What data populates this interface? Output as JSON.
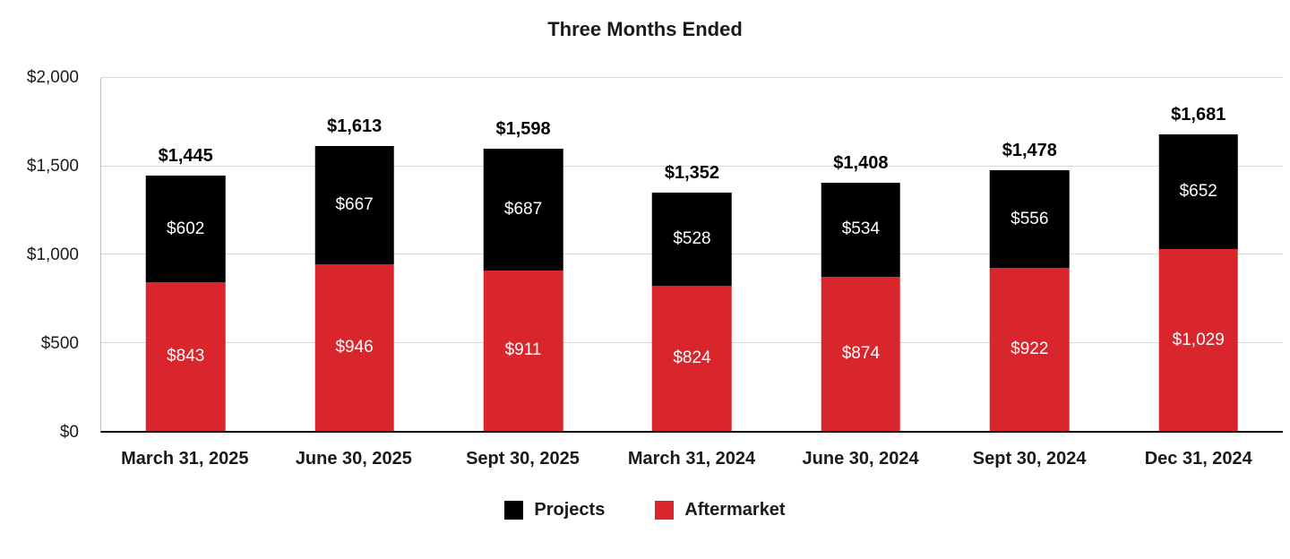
{
  "chart_data": {
    "type": "bar",
    "stacked": true,
    "title": "Three Months Ended",
    "categories": [
      "March 31, 2025",
      "June 30, 2025",
      "Sept 30, 2025",
      "March 31, 2024",
      "June 30, 2024",
      "Sept 30, 2024",
      "Dec 31, 2024"
    ],
    "series": [
      {
        "name": "Aftermarket",
        "color": "#D9262C",
        "values": [
          843,
          946,
          911,
          824,
          874,
          922,
          1029
        ],
        "labels": [
          "$843",
          "$946",
          "$911",
          "$824",
          "$874",
          "$922",
          "$1,029"
        ]
      },
      {
        "name": "Projects",
        "color": "#000000",
        "values": [
          602,
          667,
          687,
          528,
          534,
          556,
          652
        ],
        "labels": [
          "$602",
          "$667",
          "$687",
          "$528",
          "$534",
          "$556",
          "$652"
        ]
      }
    ],
    "totals": {
      "values": [
        1445,
        1613,
        1598,
        1352,
        1408,
        1478,
        1681
      ],
      "labels": [
        "$1,445",
        "$1,613",
        "$1,598",
        "$1,352",
        "$1,408",
        "$1,478",
        "$1,681"
      ]
    },
    "ylim": [
      0,
      2000
    ],
    "yticks": [
      {
        "value": 0,
        "label": "$0"
      },
      {
        "value": 500,
        "label": "$500"
      },
      {
        "value": 1000,
        "label": "$1,000"
      },
      {
        "value": 1500,
        "label": "$1,500"
      },
      {
        "value": 2000,
        "label": "$2,000"
      }
    ],
    "grid": true,
    "legend_position": "bottom",
    "legend": [
      {
        "label": "Projects",
        "color": "#000000"
      },
      {
        "label": "Aftermarket",
        "color": "#D9262C"
      }
    ]
  }
}
